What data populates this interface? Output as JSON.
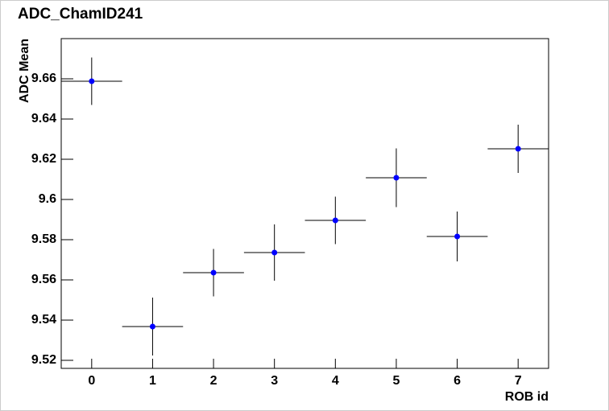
{
  "chart_data": {
    "type": "errorbar",
    "title": "ADC_ChamID241",
    "xlabel": "ROB id",
    "ylabel": "ADC Mean",
    "x": [
      0,
      1,
      2,
      3,
      4,
      5,
      6,
      7
    ],
    "values": [
      9.6588,
      9.5368,
      9.5636,
      9.5736,
      9.5896,
      9.6108,
      9.5816,
      9.6252
    ],
    "errors": [
      0.0118,
      0.0144,
      0.0118,
      0.014,
      0.0118,
      0.0146,
      0.0124,
      0.012
    ],
    "xerrors": [
      0.5,
      0.5,
      0.5,
      0.5,
      0.5,
      0.5,
      0.5,
      0.5
    ],
    "color": "#0000ff",
    "xlim": [
      -0.5,
      7.5
    ],
    "xticks": [
      0,
      1,
      2,
      3,
      4,
      5,
      6,
      7
    ],
    "ylim": [
      9.516,
      9.68
    ],
    "yticks": [
      9.52,
      9.54,
      9.56,
      9.58,
      9.6,
      9.62,
      9.64,
      9.66
    ]
  }
}
